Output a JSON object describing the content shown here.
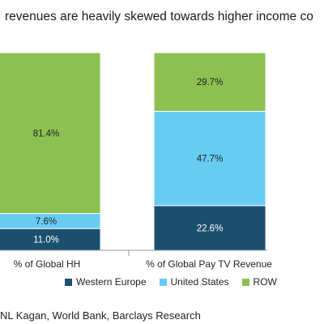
{
  "chart_data": {
    "type": "bar",
    "stacked": true,
    "title": "revenues are heavily skewed towards higher income co",
    "categories": [
      "% of Global HH",
      "% of Global Pay TV Revenue"
    ],
    "series": [
      {
        "name": "Western Europe",
        "color": "#1b4f6e",
        "values": [
          11.0,
          22.6
        ],
        "labels": [
          "11.0%",
          "22.6%"
        ]
      },
      {
        "name": "United States",
        "color": "#66ccf2",
        "values": [
          7.6,
          47.7
        ],
        "labels": [
          "7.6%",
          "47.7%"
        ]
      },
      {
        "name": "ROW",
        "color": "#8cc152",
        "values": [
          81.4,
          29.7
        ],
        "labels": [
          "81.4%",
          "29.7%"
        ]
      }
    ],
    "ylim": [
      0,
      100
    ],
    "grid": false,
    "legend_position": "bottom"
  },
  "source": "NL Kagan, World Bank, Barclays Research"
}
